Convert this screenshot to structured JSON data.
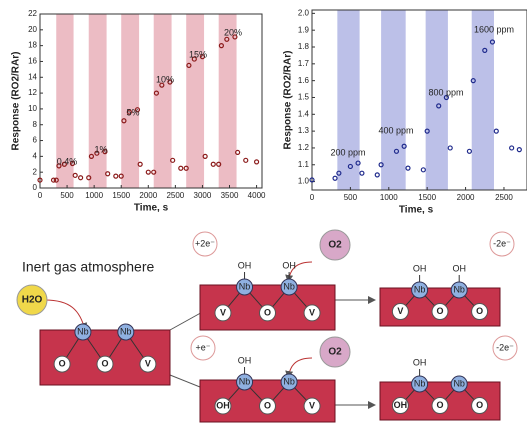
{
  "chart_data": [
    {
      "type": "line",
      "x_label": "Time, s",
      "y_label": "Response (RO2/RAr)",
      "xlim": [
        0,
        4100
      ],
      "ylim": [
        0,
        22
      ],
      "xticks": [
        0,
        500,
        1000,
        1500,
        2000,
        2500,
        3000,
        3500,
        4000
      ],
      "yticks": [
        0,
        2,
        4,
        6,
        8,
        10,
        12,
        14,
        16,
        18,
        20,
        22
      ],
      "band_color": "#ecbcc4",
      "shaded_intervals": [
        [
          300,
          620
        ],
        [
          900,
          1230
        ],
        [
          1500,
          1830
        ],
        [
          2100,
          2430
        ],
        [
          2700,
          3030
        ],
        [
          3300,
          3630
        ]
      ],
      "annotations": [
        "0.4%",
        "1%",
        "5%",
        "10%",
        "15%",
        "20%"
      ],
      "series": [
        {
          "color": "#8b1a1a",
          "x": [
            0,
            250,
            300,
            350,
            450,
            600,
            650,
            750,
            900,
            950,
            1050,
            1200,
            1250,
            1400,
            1500,
            1550,
            1650,
            1800,
            1850,
            2000,
            2100,
            2150,
            2250,
            2400,
            2450,
            2600,
            2700,
            2750,
            2850,
            3000,
            3050,
            3200,
            3300,
            3350,
            3450,
            3600,
            3650,
            3800,
            4000
          ],
          "values": [
            1,
            1,
            1,
            2.8,
            3.0,
            3.1,
            1.6,
            1.3,
            1.3,
            4.0,
            4.4,
            4.6,
            1.8,
            1.5,
            1.5,
            8.5,
            9.6,
            9.9,
            3.0,
            2.0,
            2.0,
            12.0,
            13.0,
            13.4,
            3.5,
            2.5,
            2.5,
            15.5,
            16.3,
            16.6,
            4.0,
            3.0,
            3.0,
            18.0,
            18.8,
            19.1,
            4.5,
            3.5,
            3.3
          ]
        }
      ]
    },
    {
      "type": "line",
      "x_label": "Time, s",
      "y_label": "Response (RO2/RAr)",
      "xlim": [
        0,
        2800
      ],
      "ylim": [
        0.95,
        2.02
      ],
      "xticks": [
        0,
        500,
        1000,
        1500,
        2000,
        2500
      ],
      "yticks": [
        {
          "value": 1,
          "label": "1.0"
        },
        1.1,
        1.2,
        1.3,
        1.4,
        1.5,
        1.6,
        1.7,
        1.8,
        1.9,
        {
          "value": 2,
          "label": "2.0"
        }
      ],
      "band_color": "#bcc0e8",
      "shaded_intervals": [
        [
          330,
          620
        ],
        [
          900,
          1220
        ],
        [
          1480,
          1770
        ],
        [
          2080,
          2370
        ]
      ],
      "annotations": [
        "200 ppm",
        "400 ppm",
        "800 ppm",
        "1600 ppm"
      ],
      "series": [
        {
          "color": "#1f2a8c",
          "x": [
            0,
            300,
            350,
            500,
            600,
            650,
            850,
            900,
            1100,
            1200,
            1250,
            1450,
            1500,
            1650,
            1750,
            1800,
            2050,
            2100,
            2250,
            2350,
            2400,
            2600,
            2700
          ],
          "values": [
            1.01,
            1.02,
            1.05,
            1.09,
            1.11,
            1.05,
            1.04,
            1.1,
            1.18,
            1.21,
            1.08,
            1.07,
            1.3,
            1.45,
            1.5,
            1.2,
            1.18,
            1.6,
            1.78,
            1.83,
            1.3,
            1.2,
            1.19
          ]
        }
      ]
    }
  ],
  "diagram": {
    "heading": "Inert gas atmosphere",
    "water": "H2O",
    "oxygen": "O2",
    "charges": [
      "+2e⁻",
      "-2e⁻",
      "+e⁻",
      "-2e⁻"
    ],
    "slabs": [
      {
        "metals": [
          "Nb",
          "Nb"
        ],
        "sites": [
          "O",
          "O",
          "V"
        ],
        "adsorbates": []
      },
      {
        "metals": [
          "Nb",
          "Nb"
        ],
        "sites": [
          "V",
          "O",
          "V"
        ],
        "adsorbates": [
          "OH",
          "OH"
        ]
      },
      {
        "metals": [
          "Nb",
          "Nb"
        ],
        "sites": [
          "V",
          "O",
          "O"
        ],
        "adsorbates": [
          "OH",
          "OH"
        ]
      },
      {
        "metals": [
          "Nb",
          "Nb"
        ],
        "sites": [
          "OH",
          "O",
          "V"
        ],
        "adsorbates": [
          "OH"
        ]
      },
      {
        "metals": [
          "Nb",
          "Nb"
        ],
        "sites": [
          "OH",
          "O",
          "O"
        ],
        "adsorbates": [
          "OH"
        ]
      }
    ]
  }
}
